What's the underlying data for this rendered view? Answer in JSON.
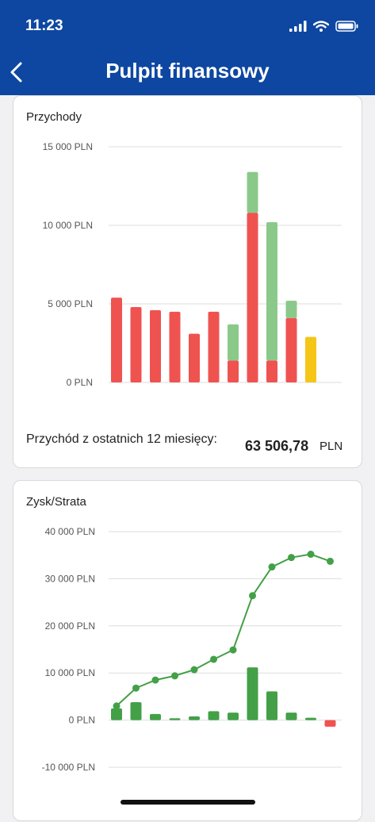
{
  "status_bar": {
    "time": "11:23"
  },
  "header": {
    "title": "Pulpit finansowy",
    "back_icon": "chevron-left-icon"
  },
  "colors": {
    "header_bg": "#0d47a1",
    "red": "#ef5350",
    "light_green": "#8bc98a",
    "yellow": "#f5c518",
    "green": "#43a047",
    "grid": "#dddddd"
  },
  "revenue_card": {
    "title": "Przychody",
    "summary_label": "Przychód z ostatnich 12 miesięcy:",
    "summary_value": "63 506,78",
    "summary_unit": "PLN"
  },
  "profit_card": {
    "title": "Zysk/Strata"
  },
  "chart_data": [
    {
      "type": "bar",
      "title": "Przychody",
      "ylim": [
        0,
        15000
      ],
      "y_ticks": [
        "0 PLN",
        "5 000 PLN",
        "10 000 PLN",
        "15 000 PLN"
      ],
      "grid": true,
      "series": [
        {
          "color": "#ef5350",
          "values": [
            5400,
            4800,
            4600,
            4500,
            3100,
            4500,
            1400,
            10800,
            1400,
            4100,
            0,
            0
          ]
        },
        {
          "color": "#8bc98a",
          "values": [
            0,
            0,
            0,
            0,
            0,
            0,
            2400,
            2700,
            8900,
            1200,
            0,
            0
          ]
        },
        {
          "color": "#f5c518",
          "values": [
            0,
            0,
            0,
            0,
            0,
            0,
            0,
            0,
            0,
            0,
            2900,
            0
          ]
        }
      ]
    },
    {
      "type": "bar+line",
      "title": "Zysk/Strata",
      "ylim": [
        -10000,
        40000
      ],
      "y_ticks": [
        "-10 000 PLN",
        "0 PLN",
        "10 000 PLN",
        "20 000 PLN",
        "30 000 PLN",
        "40 000 PLN"
      ],
      "grid": true,
      "bars": [
        2500,
        3800,
        1300,
        400,
        800,
        1900,
        1600,
        11200,
        6100,
        1600,
        500,
        -1400
      ],
      "line": [
        3000,
        6800,
        8500,
        9400,
        10700,
        12900,
        14900,
        26400,
        32500,
        34500,
        35200,
        33700
      ]
    }
  ]
}
